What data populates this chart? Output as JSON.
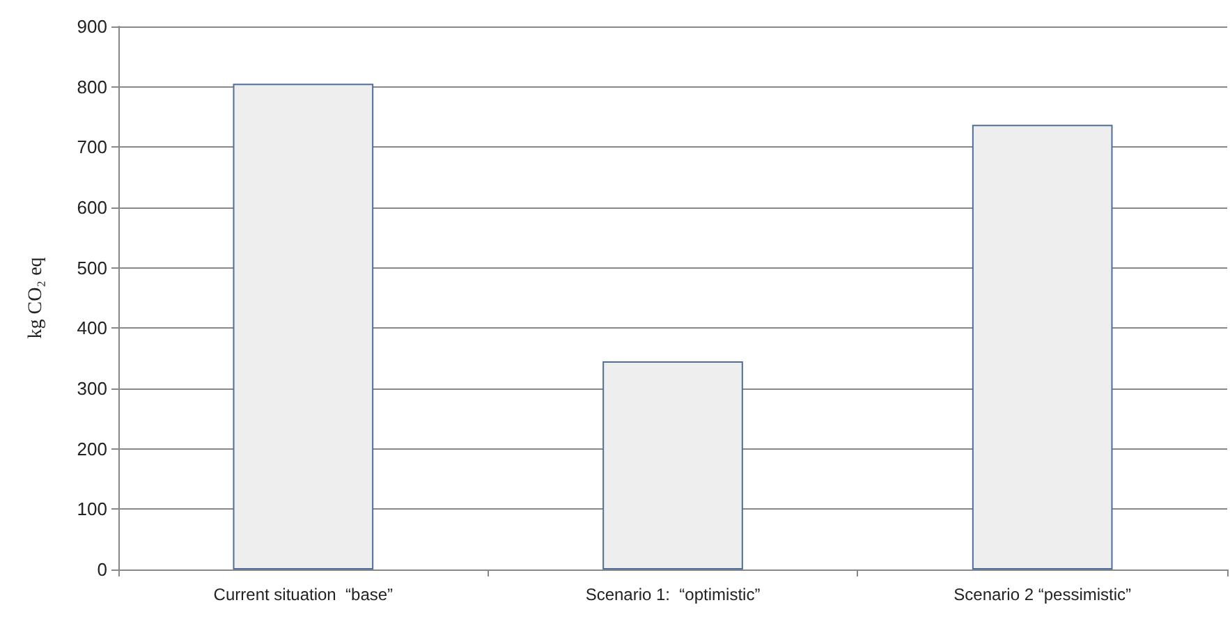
{
  "chart_data": {
    "type": "bar",
    "ylabel": "kg CO₂ eq",
    "categories": [
      "Current situation  “base”",
      "Scenario 1:  “optimistic”",
      "Scenario 2 “pessimistic”"
    ],
    "values": [
      805,
      345,
      737
    ],
    "color": "#eeeeee",
    "ylim": [
      0,
      900
    ],
    "yticks": [
      0,
      100,
      200,
      300,
      400,
      500,
      600,
      700,
      800,
      900
    ],
    "grid": "y"
  }
}
